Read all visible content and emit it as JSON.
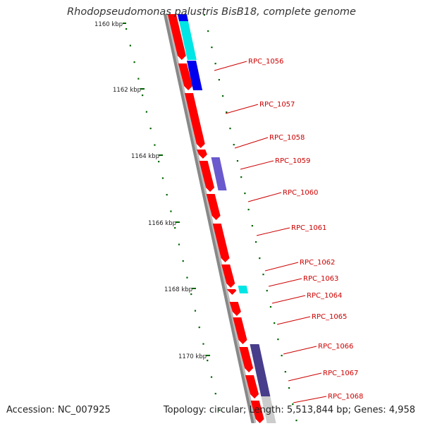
{
  "title": "Rhodopseudomonas palustris BisB18, complete genome",
  "footer": {
    "accession": "Accession: NC_007925",
    "summary": "Topology: circular; Length: 5,513,844 bp; Genes: 4,958"
  },
  "colors": {
    "gene_red": "#ff0000",
    "gene_cyan": "#00e5e5",
    "gene_blue": "#0000ee",
    "gene_violet": "#6a5acd",
    "gene_navy": "#483d8b",
    "backbone": "#888888",
    "tick_green": "#006400",
    "label_red": "#cc0000"
  },
  "scale_labels": [
    "1160 kbp",
    "1162 kbp",
    "1164 kbp",
    "1166 kbp",
    "1168 kbp",
    "1170 kbp"
  ],
  "gene_labels": [
    "RPC_1056",
    "RPC_1057",
    "RPC_1058",
    "RPC_1059",
    "RPC_1060",
    "RPC_1061",
    "RPC_1062",
    "RPC_1063",
    "RPC_1064",
    "RPC_1065",
    "RPC_1066",
    "RPC_1067",
    "RPC_1068"
  ]
}
